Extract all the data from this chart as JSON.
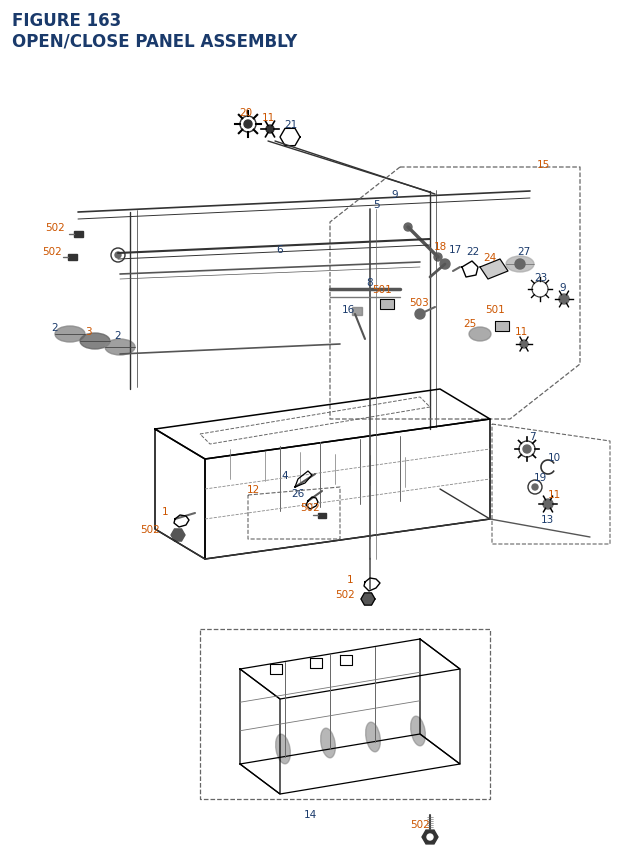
{
  "title_line1": "FIGURE 163",
  "title_line2": "OPEN/CLOSE PANEL ASSEMBLY",
  "title_color": "#1a3a6b",
  "title_fontsize": 12,
  "bg_color": "#ffffff",
  "lc_orange": "#cc5500",
  "lc_blue": "#1a3a6b",
  "lfs": 7.5
}
